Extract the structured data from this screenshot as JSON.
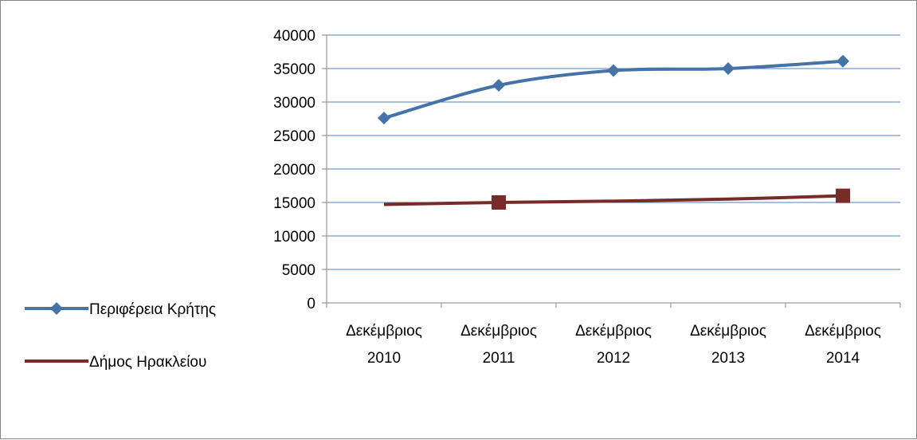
{
  "chart_data": {
    "type": "line",
    "title": "",
    "xlabel": "",
    "ylabel": "",
    "categories": [
      [
        "Δεκέμβριος",
        "2010"
      ],
      [
        "Δεκέμβριος",
        "2011"
      ],
      [
        "Δεκέμβριος",
        "2012"
      ],
      [
        "Δεκέμβριος",
        "2013"
      ],
      [
        "Δεκέμβριος",
        "2014"
      ]
    ],
    "ylim": [
      0,
      40000
    ],
    "y_ticks": [
      "0",
      "5000",
      "10000",
      "15000",
      "20000",
      "25000",
      "30000",
      "35000",
      "40000"
    ],
    "grid": true,
    "legend_position": "left",
    "series": [
      {
        "name": "Περιφέρεια Κρήτης",
        "values": [
          27600,
          32500,
          34700,
          35000,
          36100
        ],
        "color": "#4572A7",
        "marker": "diamond",
        "markers_shown": [
          true,
          true,
          true,
          true,
          true
        ]
      },
      {
        "name": "Δήμος Ηρακλείου",
        "values": [
          14700,
          15000,
          15200,
          15500,
          16000
        ],
        "color": "#772C2A",
        "marker": "square",
        "markers_shown": [
          false,
          true,
          false,
          false,
          true
        ]
      }
    ]
  }
}
